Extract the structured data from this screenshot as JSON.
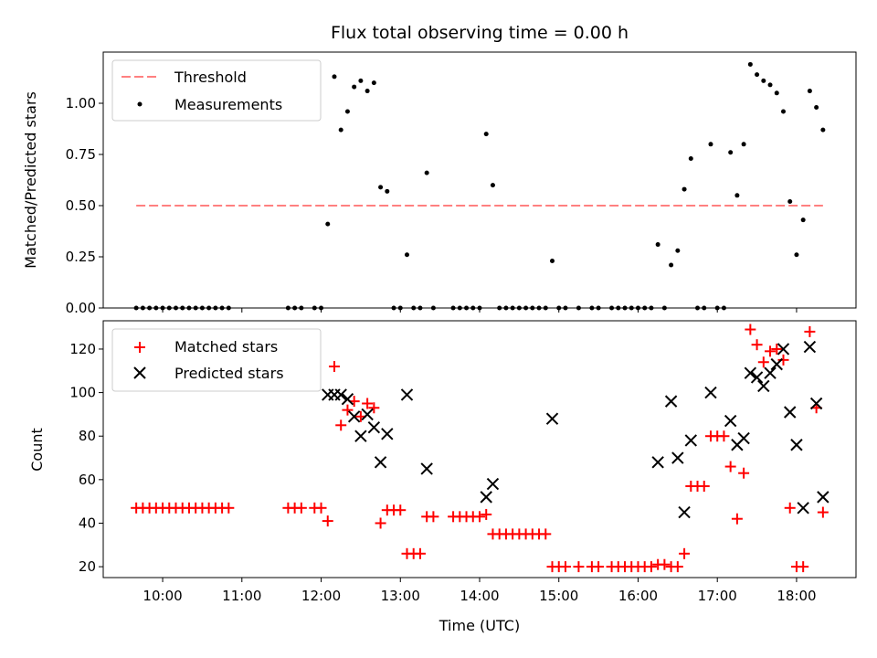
{
  "chart_data": [
    {
      "type": "scatter",
      "panel": "top",
      "title": "Flux total observing time = 0.00 h",
      "xlabel": "",
      "ylabel": "Matched/Predicted stars",
      "xlim": [
        "09:15",
        "18:45"
      ],
      "ylim": [
        0,
        1.25
      ],
      "yticks": [
        0.0,
        0.25,
        0.5,
        0.75,
        1.0
      ],
      "ytick_labels": [
        "0.00",
        "0.25",
        "0.50",
        "0.75",
        "1.00"
      ],
      "legend_position": "upper-left",
      "series": [
        {
          "name": "Threshold",
          "kind": "line",
          "style": "dashed",
          "color": "#ff8080",
          "points": [
            [
              "09:40",
              0.5
            ],
            [
              "18:20",
              0.5
            ]
          ]
        },
        {
          "name": "Measurements",
          "kind": "scatter",
          "marker": "dot",
          "color": "#000000",
          "points": [
            [
              "09:40",
              0
            ],
            [
              "09:45",
              0
            ],
            [
              "09:50",
              0
            ],
            [
              "09:55",
              0
            ],
            [
              "10:00",
              0
            ],
            [
              "10:05",
              0
            ],
            [
              "10:10",
              0
            ],
            [
              "10:15",
              0
            ],
            [
              "10:20",
              0
            ],
            [
              "10:25",
              0
            ],
            [
              "10:30",
              0
            ],
            [
              "10:35",
              0
            ],
            [
              "10:40",
              0
            ],
            [
              "10:45",
              0
            ],
            [
              "10:50",
              0
            ],
            [
              "11:35",
              0
            ],
            [
              "11:40",
              0
            ],
            [
              "11:45",
              0
            ],
            [
              "11:55",
              0
            ],
            [
              "12:00",
              0
            ],
            [
              "12:05",
              0.41
            ],
            [
              "12:10",
              1.13
            ],
            [
              "12:15",
              0.87
            ],
            [
              "12:20",
              0.96
            ],
            [
              "12:25",
              1.08
            ],
            [
              "12:30",
              1.11
            ],
            [
              "12:35",
              1.06
            ],
            [
              "12:40",
              1.1
            ],
            [
              "12:45",
              0.59
            ],
            [
              "12:50",
              0.57
            ],
            [
              "12:55",
              0
            ],
            [
              "13:00",
              0
            ],
            [
              "13:05",
              0.26
            ],
            [
              "13:10",
              0
            ],
            [
              "13:15",
              0
            ],
            [
              "13:20",
              0.66
            ],
            [
              "13:25",
              0
            ],
            [
              "13:40",
              0
            ],
            [
              "13:45",
              0
            ],
            [
              "13:50",
              0
            ],
            [
              "13:55",
              0
            ],
            [
              "14:00",
              0
            ],
            [
              "14:05",
              0.85
            ],
            [
              "14:10",
              0.6
            ],
            [
              "14:15",
              0
            ],
            [
              "14:20",
              0
            ],
            [
              "14:25",
              0
            ],
            [
              "14:30",
              0
            ],
            [
              "14:35",
              0
            ],
            [
              "14:40",
              0
            ],
            [
              "14:45",
              0
            ],
            [
              "14:50",
              0
            ],
            [
              "14:55",
              0.23
            ],
            [
              "15:00",
              0
            ],
            [
              "15:05",
              0
            ],
            [
              "15:15",
              0
            ],
            [
              "15:25",
              0
            ],
            [
              "15:30",
              0
            ],
            [
              "15:40",
              0
            ],
            [
              "15:45",
              0
            ],
            [
              "15:50",
              0
            ],
            [
              "15:55",
              0
            ],
            [
              "16:00",
              0
            ],
            [
              "16:05",
              0
            ],
            [
              "16:10",
              0
            ],
            [
              "16:15",
              0.31
            ],
            [
              "16:20",
              0
            ],
            [
              "16:25",
              0.21
            ],
            [
              "16:30",
              0.28
            ],
            [
              "16:35",
              0.58
            ],
            [
              "16:40",
              0.73
            ],
            [
              "16:45",
              0
            ],
            [
              "16:50",
              0
            ],
            [
              "16:55",
              0.8
            ],
            [
              "17:00",
              0
            ],
            [
              "17:05",
              0
            ],
            [
              "17:10",
              0.76
            ],
            [
              "17:15",
              0.55
            ],
            [
              "17:20",
              0.8
            ],
            [
              "17:25",
              1.19
            ],
            [
              "17:30",
              1.14
            ],
            [
              "17:35",
              1.11
            ],
            [
              "17:40",
              1.09
            ],
            [
              "17:45",
              1.05
            ],
            [
              "17:50",
              0.96
            ],
            [
              "17:55",
              0.52
            ],
            [
              "18:00",
              0.26
            ],
            [
              "18:05",
              0.43
            ],
            [
              "18:10",
              1.06
            ],
            [
              "18:15",
              0.98
            ],
            [
              "18:20",
              0.87
            ]
          ]
        }
      ]
    },
    {
      "type": "scatter",
      "panel": "bottom",
      "title": "",
      "xlabel": "Time (UTC)",
      "ylabel": "Count",
      "xlim": [
        "09:15",
        "18:45"
      ],
      "ylim": [
        15,
        133
      ],
      "yticks": [
        20,
        40,
        60,
        80,
        100,
        120
      ],
      "xticks": [
        "10:00",
        "11:00",
        "12:00",
        "13:00",
        "14:00",
        "15:00",
        "16:00",
        "17:00",
        "18:00"
      ],
      "legend_position": "upper-left",
      "series": [
        {
          "name": "Matched stars",
          "kind": "scatter",
          "marker": "plus",
          "color": "#ff0000",
          "points": [
            [
              "09:40",
              47
            ],
            [
              "09:45",
              47
            ],
            [
              "09:50",
              47
            ],
            [
              "09:55",
              47
            ],
            [
              "10:00",
              47
            ],
            [
              "10:05",
              47
            ],
            [
              "10:10",
              47
            ],
            [
              "10:15",
              47
            ],
            [
              "10:20",
              47
            ],
            [
              "10:25",
              47
            ],
            [
              "10:30",
              47
            ],
            [
              "10:35",
              47
            ],
            [
              "10:40",
              47
            ],
            [
              "10:45",
              47
            ],
            [
              "10:50",
              47
            ],
            [
              "11:35",
              47
            ],
            [
              "11:40",
              47
            ],
            [
              "11:45",
              47
            ],
            [
              "11:55",
              47
            ],
            [
              "12:00",
              47
            ],
            [
              "12:05",
              41
            ],
            [
              "12:10",
              112
            ],
            [
              "12:15",
              85
            ],
            [
              "12:20",
              92
            ],
            [
              "12:25",
              96
            ],
            [
              "12:30",
              89
            ],
            [
              "12:35",
              95
            ],
            [
              "12:40",
              93
            ],
            [
              "12:45",
              40
            ],
            [
              "12:50",
              46
            ],
            [
              "12:55",
              46
            ],
            [
              "13:00",
              46
            ],
            [
              "13:05",
              26
            ],
            [
              "13:10",
              26
            ],
            [
              "13:15",
              26
            ],
            [
              "13:20",
              43
            ],
            [
              "13:25",
              43
            ],
            [
              "13:40",
              43
            ],
            [
              "13:45",
              43
            ],
            [
              "13:50",
              43
            ],
            [
              "13:55",
              43
            ],
            [
              "14:00",
              43
            ],
            [
              "14:05",
              44
            ],
            [
              "14:10",
              35
            ],
            [
              "14:15",
              35
            ],
            [
              "14:20",
              35
            ],
            [
              "14:25",
              35
            ],
            [
              "14:30",
              35
            ],
            [
              "14:35",
              35
            ],
            [
              "14:40",
              35
            ],
            [
              "14:45",
              35
            ],
            [
              "14:50",
              35
            ],
            [
              "14:55",
              20
            ],
            [
              "15:00",
              20
            ],
            [
              "15:05",
              20
            ],
            [
              "15:15",
              20
            ],
            [
              "15:25",
              20
            ],
            [
              "15:30",
              20
            ],
            [
              "15:40",
              20
            ],
            [
              "15:45",
              20
            ],
            [
              "15:50",
              20
            ],
            [
              "15:55",
              20
            ],
            [
              "16:00",
              20
            ],
            [
              "16:05",
              20
            ],
            [
              "16:10",
              20
            ],
            [
              "16:15",
              21
            ],
            [
              "16:20",
              21
            ],
            [
              "16:25",
              20
            ],
            [
              "16:30",
              20
            ],
            [
              "16:35",
              26
            ],
            [
              "16:40",
              57
            ],
            [
              "16:45",
              57
            ],
            [
              "16:50",
              57
            ],
            [
              "16:55",
              80
            ],
            [
              "17:00",
              80
            ],
            [
              "17:05",
              80
            ],
            [
              "17:10",
              66
            ],
            [
              "17:15",
              42
            ],
            [
              "17:20",
              63
            ],
            [
              "17:25",
              129
            ],
            [
              "17:30",
              122
            ],
            [
              "17:35",
              114
            ],
            [
              "17:40",
              119
            ],
            [
              "17:45",
              120
            ],
            [
              "17:50",
              115
            ],
            [
              "17:55",
              47
            ],
            [
              "18:00",
              20
            ],
            [
              "18:05",
              20
            ],
            [
              "18:10",
              128
            ],
            [
              "18:15",
              93
            ],
            [
              "18:20",
              45
            ]
          ]
        },
        {
          "name": "Predicted stars",
          "kind": "scatter",
          "marker": "x",
          "color": "#000000",
          "points": [
            [
              "12:05",
              99
            ],
            [
              "12:10",
              99
            ],
            [
              "12:15",
              99
            ],
            [
              "12:20",
              97
            ],
            [
              "12:25",
              89
            ],
            [
              "12:30",
              80
            ],
            [
              "12:35",
              90
            ],
            [
              "12:40",
              84
            ],
            [
              "12:45",
              68
            ],
            [
              "12:50",
              81
            ],
            [
              "13:05",
              99
            ],
            [
              "13:20",
              65
            ],
            [
              "14:05",
              52
            ],
            [
              "14:10",
              58
            ],
            [
              "14:55",
              88
            ],
            [
              "16:15",
              68
            ],
            [
              "16:25",
              96
            ],
            [
              "16:30",
              70
            ],
            [
              "16:35",
              45
            ],
            [
              "16:40",
              78
            ],
            [
              "16:55",
              100
            ],
            [
              "17:10",
              87
            ],
            [
              "17:15",
              76
            ],
            [
              "17:20",
              79
            ],
            [
              "17:25",
              109
            ],
            [
              "17:30",
              107
            ],
            [
              "17:35",
              103
            ],
            [
              "17:40",
              109
            ],
            [
              "17:45",
              113
            ],
            [
              "17:50",
              120
            ],
            [
              "17:55",
              91
            ],
            [
              "18:00",
              76
            ],
            [
              "18:05",
              47
            ],
            [
              "18:10",
              121
            ],
            [
              "18:15",
              95
            ],
            [
              "18:20",
              52
            ]
          ]
        }
      ]
    }
  ]
}
